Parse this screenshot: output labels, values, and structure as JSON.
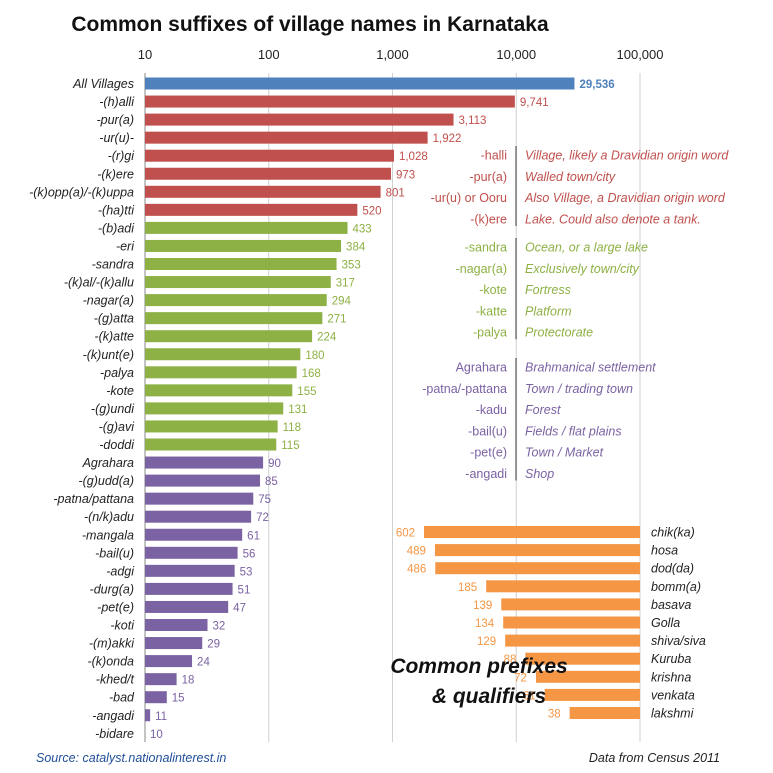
{
  "colors": {
    "all": "#4f81bd",
    "dravidian": "#c0504d",
    "water": "#8db145",
    "sanskrit": "#7b62a3",
    "prefix": "#f59644",
    "source": "#1f4e9a"
  },
  "chart_data": {
    "type": "bar",
    "title": "Common suffixes of village names in Karnataka",
    "x_scale": "log",
    "xlim": [
      10,
      100000
    ],
    "x_ticks": [
      "10",
      "100",
      "1,000",
      "10,000",
      "100,000"
    ],
    "grid": true,
    "suffixes": [
      {
        "label": "All Villages",
        "value": 29536,
        "value_label": "29,536",
        "group": "all"
      },
      {
        "label": "-(h)alli",
        "value": 9741,
        "value_label": "9,741",
        "group": "dravidian"
      },
      {
        "label": "-pur(a)",
        "value": 3113,
        "value_label": "3,113",
        "group": "dravidian"
      },
      {
        "label": "-ur(u)-",
        "value": 1922,
        "value_label": "1,922",
        "group": "dravidian"
      },
      {
        "label": "-(r)gi",
        "value": 1028,
        "value_label": "1,028",
        "group": "dravidian"
      },
      {
        "label": "-(k)ere",
        "value": 973,
        "value_label": "973",
        "group": "dravidian"
      },
      {
        "label": "-(k)opp(a)/-(k)uppa",
        "value": 801,
        "value_label": "801",
        "group": "dravidian"
      },
      {
        "label": "-(ha)tti",
        "value": 520,
        "value_label": "520",
        "group": "dravidian"
      },
      {
        "label": "-(b)adi",
        "value": 433,
        "value_label": "433",
        "group": "water"
      },
      {
        "label": "-eri",
        "value": 384,
        "value_label": "384",
        "group": "water"
      },
      {
        "label": "-sandra",
        "value": 353,
        "value_label": "353",
        "group": "water"
      },
      {
        "label": "-(k)al/-(k)allu",
        "value": 317,
        "value_label": "317",
        "group": "water"
      },
      {
        "label": "-nagar(a)",
        "value": 294,
        "value_label": "294",
        "group": "water"
      },
      {
        "label": "-(g)atta",
        "value": 271,
        "value_label": "271",
        "group": "water"
      },
      {
        "label": "-(k)atte",
        "value": 224,
        "value_label": "224",
        "group": "water"
      },
      {
        "label": "-(k)unt(e)",
        "value": 180,
        "value_label": "180",
        "group": "water"
      },
      {
        "label": "-palya",
        "value": 168,
        "value_label": "168",
        "group": "water"
      },
      {
        "label": "-kote",
        "value": 155,
        "value_label": "155",
        "group": "water"
      },
      {
        "label": "-(g)undi",
        "value": 131,
        "value_label": "131",
        "group": "water"
      },
      {
        "label": "-(g)avi",
        "value": 118,
        "value_label": "118",
        "group": "water"
      },
      {
        "label": "-doddi",
        "value": 115,
        "value_label": "115",
        "group": "water"
      },
      {
        "label": "Agrahara",
        "value": 90,
        "value_label": "90",
        "group": "sanskrit"
      },
      {
        "label": "-(g)udd(a)",
        "value": 85,
        "value_label": "85",
        "group": "sanskrit"
      },
      {
        "label": "-patna/pattana",
        "value": 75,
        "value_label": "75",
        "group": "sanskrit"
      },
      {
        "label": "-(n/k)adu",
        "value": 72,
        "value_label": "72",
        "group": "sanskrit"
      },
      {
        "label": "-mangala",
        "value": 61,
        "value_label": "61",
        "group": "sanskrit"
      },
      {
        "label": "-bail(u)",
        "value": 56,
        "value_label": "56",
        "group": "sanskrit"
      },
      {
        "label": "-adgi",
        "value": 53,
        "value_label": "53",
        "group": "sanskrit"
      },
      {
        "label": "-durg(a)",
        "value": 51,
        "value_label": "51",
        "group": "sanskrit"
      },
      {
        "label": "-pet(e)",
        "value": 47,
        "value_label": "47",
        "group": "sanskrit"
      },
      {
        "label": "-koti",
        "value": 32,
        "value_label": "32",
        "group": "sanskrit"
      },
      {
        "label": "-(m)akki",
        "value": 29,
        "value_label": "29",
        "group": "sanskrit"
      },
      {
        "label": "-(k)onda",
        "value": 24,
        "value_label": "24",
        "group": "sanskrit"
      },
      {
        "label": "-khed/t",
        "value": 18,
        "value_label": "18",
        "group": "sanskrit"
      },
      {
        "label": "-bad",
        "value": 15,
        "value_label": "15",
        "group": "sanskrit"
      },
      {
        "label": "-angadi",
        "value": 11,
        "value_label": "11",
        "group": "sanskrit"
      },
      {
        "label": "-bidare",
        "value": 10,
        "value_label": "10",
        "group": "sanskrit"
      }
    ],
    "prefixes_title": [
      "Common prefixes",
      "& qualifiers"
    ],
    "prefixes": [
      {
        "label": "chik(ka)",
        "value": 602,
        "value_label": "602"
      },
      {
        "label": "hosa",
        "value": 489,
        "value_label": "489"
      },
      {
        "label": "dod(da)",
        "value": 486,
        "value_label": "486"
      },
      {
        "label": "bomm(a)",
        "value": 185,
        "value_label": "185"
      },
      {
        "label": "basava",
        "value": 139,
        "value_label": "139"
      },
      {
        "label": "Golla",
        "value": 134,
        "value_label": "134"
      },
      {
        "label": "shiva/siva",
        "value": 129,
        "value_label": "129"
      },
      {
        "label": "Kuruba",
        "value": 88,
        "value_label": "88"
      },
      {
        "label": "krishna",
        "value": 72,
        "value_label": "72"
      },
      {
        "label": "venkata",
        "value": 61,
        "value_label": "61"
      },
      {
        "label": "lakshmi",
        "value": 38,
        "value_label": "38"
      }
    ],
    "glossary": [
      {
        "group": "dravidian",
        "entries": [
          {
            "abbr": "-halli",
            "meaning": "Village, likely a Dravidian origin word"
          },
          {
            "abbr": "-pur(a)",
            "meaning": "Walled town/city"
          },
          {
            "abbr": "-ur(u) or Ooru",
            "meaning": "Also Village, a Dravidian origin word"
          },
          {
            "abbr": "-(k)ere",
            "meaning": "Lake. Could also denote a tank."
          }
        ]
      },
      {
        "group": "water",
        "entries": [
          {
            "abbr": "-sandra",
            "meaning": "Ocean, or a large lake"
          },
          {
            "abbr": "-nagar(a)",
            "meaning": "Exclusively town/city"
          },
          {
            "abbr": "-kote",
            "meaning": "Fortress"
          },
          {
            "abbr": "-katte",
            "meaning": "Platform"
          },
          {
            "abbr": "-palya",
            "meaning": "Protectorate"
          }
        ]
      },
      {
        "group": "sanskrit",
        "entries": [
          {
            "abbr": "Agrahara",
            "meaning": "Brahmanical settlement"
          },
          {
            "abbr": "-patna/-pattana",
            "meaning": "Town / trading town"
          },
          {
            "abbr": "-kadu",
            "meaning": "Forest"
          },
          {
            "abbr": "-bail(u)",
            "meaning": "Fields / flat plains"
          },
          {
            "abbr": "-pet(e)",
            "meaning": "Town / Market"
          },
          {
            "abbr": "-angadi",
            "meaning": "Shop"
          }
        ]
      }
    ],
    "source": "Source: catalyst.nationalinterest.in",
    "data_note": "Data from Census 2011"
  }
}
